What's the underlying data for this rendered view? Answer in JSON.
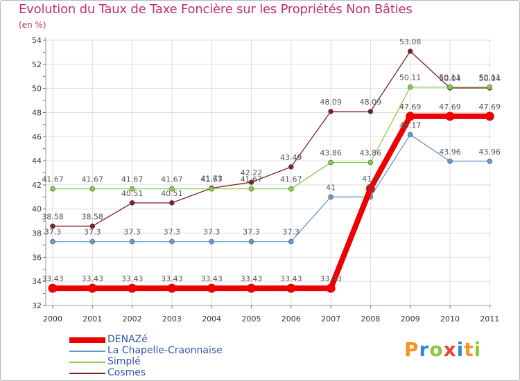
{
  "title": "Evolution du Taux de Taxe Foncière sur les Propriétés Non Bâties",
  "subtitle": "(en %)",
  "logo": {
    "text": "Proxiti",
    "colors": [
      "#f7941d",
      "#2e8bd0",
      "#8dc63f",
      "#ef4136",
      "#2e8bd0",
      "#f7941d",
      "#8dc63f"
    ]
  },
  "chart_data": {
    "type": "line",
    "title": "Evolution du Taux de Taxe Foncière sur les Propriétés Non Bâties",
    "ylabel": "(en %)",
    "xlabel": "",
    "x": [
      "2000",
      "2001",
      "2002",
      "2003",
      "2004",
      "2005",
      "2006",
      "2007",
      "2008",
      "2009",
      "2010",
      "2011"
    ],
    "ylim": [
      32,
      54
    ],
    "yticks": [
      32,
      34,
      36,
      38,
      40,
      42,
      44,
      46,
      48,
      50,
      52,
      54
    ],
    "grid": true,
    "legend_position": "bottom-left",
    "series": [
      {
        "name": "DENAZé",
        "color": "#ee0000",
        "values": [
          33.43,
          33.43,
          33.43,
          33.43,
          33.43,
          33.43,
          33.43,
          33.43,
          41.7,
          47.69,
          47.69,
          47.69
        ],
        "labels": [
          "33.43",
          "33.43",
          "33.43",
          "33.43",
          "33.43",
          "33.43",
          "33.43",
          "33.43",
          "41.7",
          "47.69",
          "47.69",
          "47.69"
        ]
      },
      {
        "name": "La Chapelle-Craonnaise",
        "color": "#6699cc",
        "values": [
          37.3,
          37.3,
          37.3,
          37.3,
          37.3,
          37.3,
          37.3,
          41,
          41,
          46.17,
          43.96,
          43.96
        ],
        "labels": [
          "37.3",
          "37.3",
          "37.3",
          "37.3",
          "37.3",
          "37.3",
          "37.3",
          "41",
          "41",
          "46.17",
          "43.96",
          "43.96"
        ]
      },
      {
        "name": "Simplé",
        "color": "#88cc44",
        "values": [
          41.67,
          41.67,
          41.67,
          41.67,
          41.67,
          41.67,
          41.67,
          43.86,
          43.86,
          50.11,
          50.11,
          50.11
        ],
        "labels": [
          "41.67",
          "41.67",
          "41.67",
          "41.67",
          "41.67",
          "41.67",
          "41.67",
          "43.86",
          "43.86",
          "50.11",
          "50.11",
          "50.11"
        ]
      },
      {
        "name": "Cosmes",
        "color": "#7a2222",
        "values": [
          38.58,
          38.58,
          40.51,
          40.51,
          41.73,
          42.22,
          43.49,
          48.09,
          48.09,
          53.08,
          50.04,
          50.04
        ],
        "labels": [
          "38.58",
          "38.58",
          "40.51",
          "40.51",
          "41.73",
          "42.22",
          "43.49",
          "48.09",
          "48.09",
          "53.08",
          "50.04",
          "50.04"
        ]
      }
    ]
  }
}
